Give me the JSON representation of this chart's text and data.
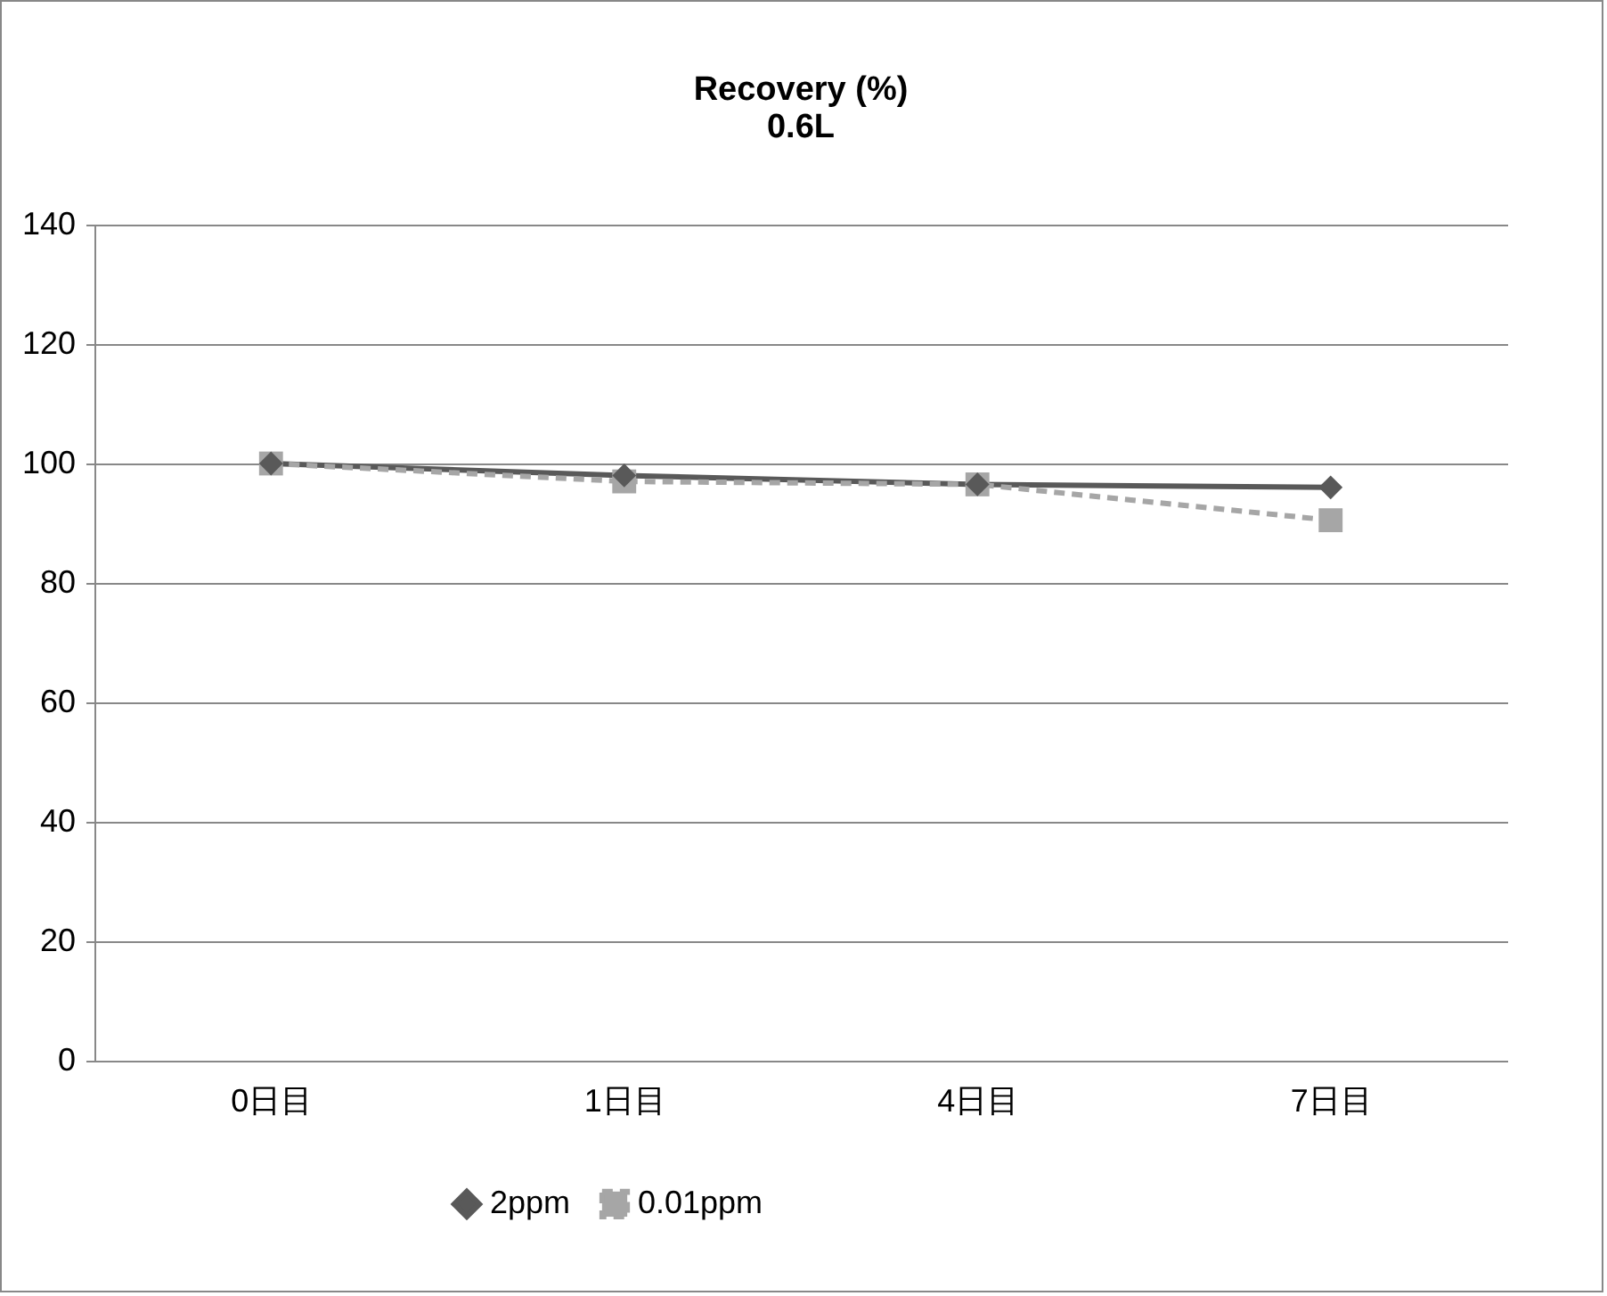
{
  "chart_data": {
    "type": "line",
    "title": "Recovery (%)",
    "subtitle": "0.6L",
    "categories": [
      "0日目",
      "1日目",
      "4日目",
      "7日目"
    ],
    "series": [
      {
        "name": "2ppm",
        "color": "#595959",
        "marker": "diamond",
        "line_style": "solid",
        "values": [
          100,
          98,
          96.5,
          96
        ]
      },
      {
        "name": "0.01ppm",
        "color": "#a6a6a6",
        "marker": "square",
        "line_style": "dashed",
        "values": [
          100,
          97,
          96.5,
          90.5
        ]
      }
    ],
    "ylim": [
      0,
      140
    ],
    "yticks": [
      0,
      20,
      40,
      60,
      80,
      100,
      120,
      140
    ],
    "grid": "y",
    "legend": "bottom"
  }
}
